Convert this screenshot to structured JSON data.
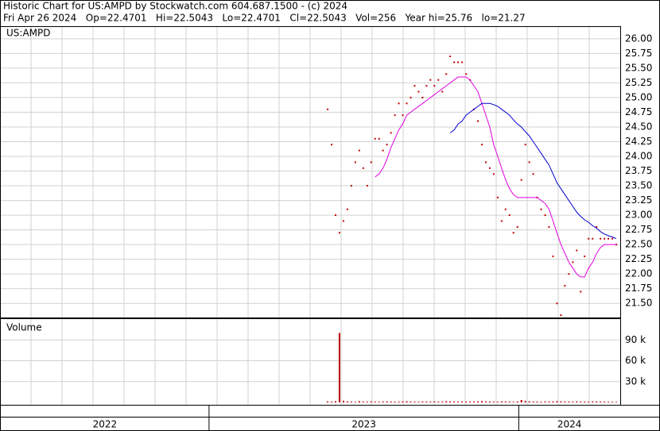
{
  "header": {
    "line1": "Historic Chart for US:AMPD by Stockwatch.com 604.687.1500 - (c) 2024",
    "line2": "Fri Apr 26 2024   Op=22.4701   Hi=22.5043   Lo=22.4701   Cl=22.5043   Vol=256   Year hi=25.76   lo=21.27"
  },
  "chart_data": [
    {
      "type": "scatter",
      "title": "US:AMPD",
      "x": [
        248,
        251,
        254,
        257,
        260,
        263,
        266,
        269,
        272,
        275,
        278,
        281,
        284,
        287,
        290,
        293,
        296,
        299,
        302,
        305,
        308,
        311,
        314,
        317,
        320,
        323,
        326,
        329,
        332,
        335,
        338,
        341,
        344,
        347,
        350,
        353,
        356,
        359,
        362,
        365,
        368,
        371,
        374,
        377,
        380,
        383,
        386,
        389,
        392,
        395,
        398,
        401,
        404,
        407,
        410,
        413,
        416,
        419,
        422,
        425,
        428,
        431,
        434,
        437,
        440,
        443,
        446,
        449,
        452,
        455,
        458,
        461,
        464,
        467
      ],
      "xlim": [
        0,
        470
      ],
      "xticks": [
        158,
        393
      ],
      "years": [
        "2022",
        "2023",
        "2024"
      ],
      "ylim": [
        21.26,
        26.2
      ],
      "yticks": [
        {
          "value": 26,
          "label": "26.00"
        },
        {
          "value": 25.75,
          "label": "25.75"
        },
        {
          "value": 25.5,
          "label": "25.50"
        },
        {
          "value": 25.25,
          "label": "25.25"
        },
        {
          "value": 25,
          "label": "25.00"
        },
        {
          "value": 24.75,
          "label": "24.75"
        },
        {
          "value": 24.5,
          "label": "24.50"
        },
        {
          "value": 24.25,
          "label": "24.25"
        },
        {
          "value": 24,
          "label": "24.00"
        },
        {
          "value": 23.75,
          "label": "23.75"
        },
        {
          "value": 23.5,
          "label": "23.50"
        },
        {
          "value": 23.25,
          "label": "23.25"
        },
        {
          "value": 23,
          "label": "23.00"
        },
        {
          "value": 22.75,
          "label": "22.75"
        },
        {
          "value": 22.5,
          "label": "22.50"
        },
        {
          "value": 22.25,
          "label": "22.25"
        },
        {
          "value": 22,
          "label": "22.00"
        },
        {
          "value": 21.75,
          "label": "21.75"
        },
        {
          "value": 21.5,
          "label": "21.50"
        }
      ],
      "grid": true,
      "series": [
        {
          "kind": "points",
          "color": "#c00000",
          "values": [
            24.8,
            24.2,
            23.0,
            22.7,
            22.9,
            23.1,
            23.5,
            23.9,
            24.1,
            23.8,
            23.5,
            23.9,
            24.3,
            24.3,
            24.1,
            24.2,
            24.4,
            24.7,
            24.9,
            24.7,
            24.9,
            25.0,
            25.2,
            25.1,
            25.0,
            25.2,
            25.3,
            25.2,
            25.3,
            25.1,
            25.4,
            25.7,
            25.6,
            25.6,
            25.6,
            25.4,
            25.3,
            24.8,
            24.6,
            24.2,
            23.9,
            23.8,
            23.7,
            23.3,
            22.9,
            23.1,
            23.0,
            22.7,
            22.8,
            23.6,
            24.2,
            23.9,
            23.7,
            23.3,
            23.1,
            23.0,
            22.8,
            22.3,
            21.5,
            21.3,
            21.8,
            22.0,
            22.2,
            22.4,
            21.7,
            22.3,
            22.6,
            22.6,
            22.8,
            22.6,
            22.6,
            22.6,
            22.6,
            22.5
          ]
        },
        {
          "kind": "line",
          "color": "#e000e0",
          "values": [
            null,
            null,
            null,
            null,
            null,
            null,
            null,
            null,
            null,
            null,
            null,
            null,
            23.65,
            23.7,
            23.8,
            23.95,
            24.15,
            24.3,
            24.45,
            24.55,
            24.7,
            24.75,
            24.8,
            24.85,
            24.9,
            24.95,
            25.0,
            25.05,
            25.1,
            25.15,
            25.2,
            25.25,
            25.3,
            25.35,
            25.35,
            25.35,
            25.3,
            25.2,
            25.1,
            24.9,
            24.7,
            24.5,
            24.2,
            24.0,
            23.8,
            23.6,
            23.45,
            23.35,
            23.3,
            23.3,
            23.3,
            23.3,
            23.3,
            23.3,
            23.25,
            23.2,
            23.1,
            22.9,
            22.7,
            22.5,
            22.35,
            22.2,
            22.1,
            22.0,
            21.95,
            21.95,
            22.1,
            22.2,
            22.35,
            22.45,
            22.5,
            22.5,
            22.5,
            22.5
          ]
        },
        {
          "kind": "line",
          "color": "#0000d0",
          "values": [
            null,
            null,
            null,
            null,
            null,
            null,
            null,
            null,
            null,
            null,
            null,
            null,
            null,
            null,
            null,
            null,
            null,
            null,
            null,
            null,
            null,
            null,
            null,
            null,
            null,
            null,
            null,
            null,
            null,
            null,
            null,
            24.4,
            24.45,
            24.55,
            24.6,
            24.7,
            24.75,
            24.8,
            24.85,
            24.9,
            24.9,
            24.9,
            24.88,
            24.85,
            24.8,
            24.75,
            24.7,
            24.62,
            24.55,
            24.5,
            24.42,
            24.35,
            24.25,
            24.15,
            24.05,
            23.95,
            23.85,
            23.7,
            23.55,
            23.45,
            23.35,
            23.25,
            23.15,
            23.05,
            22.98,
            22.92,
            22.88,
            22.82,
            22.78,
            22.72,
            22.68,
            22.65,
            22.63,
            22.6
          ]
        }
      ]
    },
    {
      "type": "bar",
      "title": "Volume",
      "color": "#c00000",
      "ylim": [
        0,
        120000
      ],
      "yticks": [
        {
          "value": 90000,
          "label": "90 k"
        },
        {
          "value": 60000,
          "label": "60 k"
        },
        {
          "value": 30000,
          "label": "30 k"
        }
      ],
      "values": [
        1500,
        1200,
        1800,
        100000,
        2500,
        1500,
        1200,
        1000,
        1800,
        1300,
        1100,
        1500,
        1200,
        1000,
        1400,
        1600,
        1300,
        1200,
        1100,
        1500,
        1700,
        1300,
        1200,
        1000,
        1400,
        1300,
        1200,
        1500,
        1100,
        1300,
        1800,
        1600,
        1400,
        1200,
        1500,
        1300,
        1200,
        1400,
        1600,
        1900,
        1500,
        1300,
        1200,
        1100,
        1600,
        1400,
        1200,
        1000,
        1500,
        3500,
        2200,
        1600,
        1300,
        1200,
        1100,
        1400,
        1300,
        1500,
        1800,
        1600,
        1400,
        1300,
        1200,
        1500,
        1300,
        1200,
        1100,
        1400,
        1500,
        1300,
        1200,
        1100,
        1000,
        900
      ]
    }
  ]
}
